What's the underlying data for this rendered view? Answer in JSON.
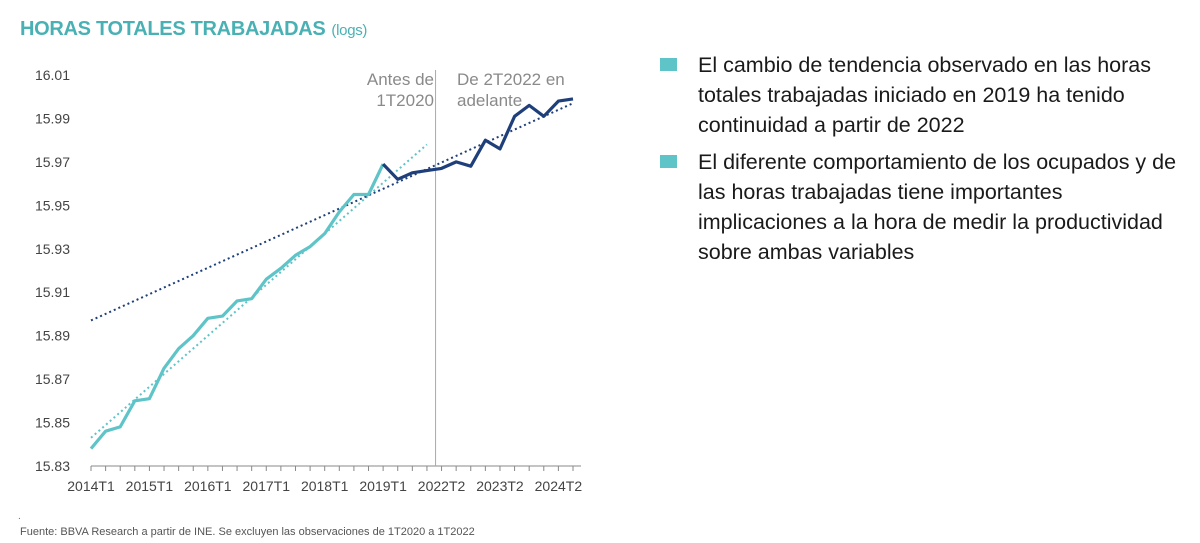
{
  "title": "HORAS TOTALES TRABAJADAS",
  "title_unit": "(logs)",
  "colors": {
    "title": "#49b1b4",
    "series_before": "#5ec4c8",
    "series_after": "#1f3f7a",
    "trend_before": "#5ec4c8",
    "trend_after": "#1f3f7a",
    "bullet": "#5ec4c8",
    "divider": "#aaaaaa"
  },
  "chart_data": {
    "type": "line",
    "title": "HORAS TOTALES TRABAJADAS",
    "ylim": [
      15.83,
      16.01
    ],
    "y_ticks": [
      "16.01",
      "15.99",
      "15.97",
      "15.95",
      "15.93",
      "15.91",
      "15.89",
      "15.87",
      "15.85",
      "15.83"
    ],
    "x_ticks": [
      "2014T1",
      "2015T1",
      "2016T1",
      "2017T1",
      "2018T1",
      "2019T1",
      "2022T2",
      "2023T2",
      "2024T2"
    ],
    "x_tick_index": [
      0,
      4,
      8,
      12,
      16,
      20,
      24,
      28,
      32
    ],
    "grid": false,
    "series": [
      {
        "period": "before",
        "x_start_index": 0,
        "values": [
          15.838,
          15.846,
          15.848,
          15.86,
          15.861,
          15.875,
          15.884,
          15.89,
          15.898,
          15.899,
          15.906,
          15.907,
          15.916,
          15.921,
          15.927,
          15.931,
          15.937,
          15.947,
          15.955,
          15.955,
          15.969
        ]
      },
      {
        "period": "after",
        "x_start_index": 20,
        "values": [
          15.969,
          15.962,
          15.965,
          15.966,
          15.967,
          15.97,
          15.968,
          15.98,
          15.976,
          15.991,
          15.996,
          15.991,
          15.998,
          15.999
        ]
      }
    ],
    "trend_lines": [
      {
        "period": "before",
        "x_index": [
          0,
          23
        ],
        "y": [
          15.843,
          15.978
        ]
      },
      {
        "period": "after",
        "x_index": [
          0,
          33
        ],
        "y": [
          15.897,
          15.997
        ]
      }
    ],
    "divider_x_index": 24,
    "annotations": [
      {
        "id": "before",
        "lines": [
          "Antes de",
          "1T2020"
        ]
      },
      {
        "id": "after",
        "lines": [
          "De 2T2022 en",
          "adelante"
        ]
      }
    ]
  },
  "bullets": [
    "El cambio de tendencia observado en las horas totales trabajadas iniciado en 2019 ha tenido continuidad a partir de 2022",
    "El diferente comportamiento de los ocupados y de las horas trabajadas tiene importantes implicaciones a la hora de medir la productividad sobre ambas variables"
  ],
  "footnote_mark": ".",
  "source": "Fuente: BBVA Research a partir de INE. Se excluyen las observaciones de 1T2020 a 1T2022"
}
